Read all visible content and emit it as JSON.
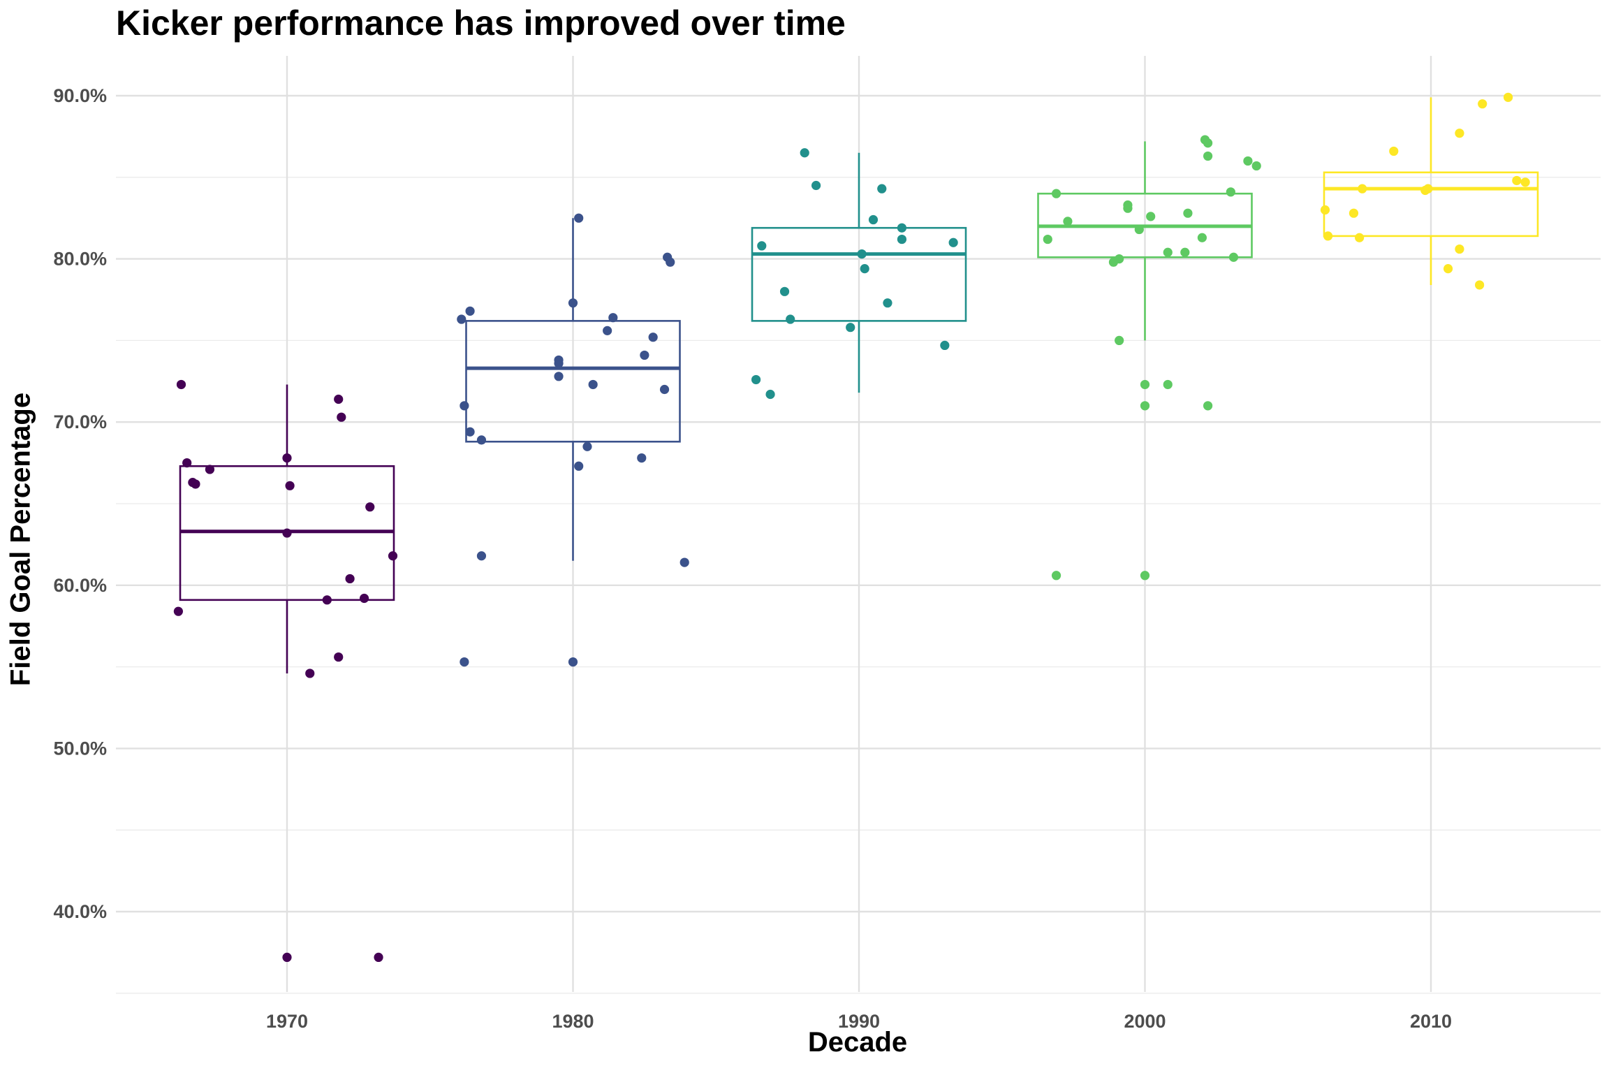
{
  "chart_data": {
    "type": "box",
    "title": "Kicker performance has improved over time",
    "xlabel": "Decade",
    "ylabel": "Field Goal Percentage",
    "categories": [
      "1970",
      "1980",
      "1990",
      "2000",
      "2010"
    ],
    "ylim": [
      0.35,
      0.92
    ],
    "y_ticks": [
      0.4,
      0.5,
      0.6,
      0.7,
      0.8,
      0.9
    ],
    "y_tick_labels": [
      "40.0%",
      "50.0%",
      "60.0%",
      "70.0%",
      "80.0%",
      "90.0%"
    ],
    "grid": true,
    "legend": "none",
    "colors": [
      "#440154",
      "#3b528b",
      "#21908c",
      "#5ec962",
      "#fde725"
    ],
    "boxes": [
      {
        "category": "1970",
        "q1": 0.591,
        "median": 0.633,
        "q3": 0.673,
        "whisker_low": 0.546,
        "whisker_high": 0.723
      },
      {
        "category": "1980",
        "q1": 0.688,
        "median": 0.733,
        "q3": 0.762,
        "whisker_low": 0.615,
        "whisker_high": 0.825
      },
      {
        "category": "1990",
        "q1": 0.762,
        "median": 0.803,
        "q3": 0.819,
        "whisker_low": 0.718,
        "whisker_high": 0.865
      },
      {
        "category": "2000",
        "q1": 0.801,
        "median": 0.82,
        "q3": 0.84,
        "whisker_low": 0.75,
        "whisker_high": 0.872
      },
      {
        "category": "2010",
        "q1": 0.814,
        "median": 0.843,
        "q3": 0.853,
        "whisker_low": 0.784,
        "whisker_high": 0.899
      }
    ],
    "points": [
      [
        [
          1966.3,
          0.723
        ],
        [
          1966.5,
          0.675
        ],
        [
          1966.7,
          0.663
        ],
        [
          1966.8,
          0.662
        ],
        [
          1967.3,
          0.671
        ],
        [
          1966.2,
          0.584
        ],
        [
          1970.0,
          0.678
        ],
        [
          1970.1,
          0.661
        ],
        [
          1970.0,
          0.632
        ],
        [
          1970.0,
          0.372
        ],
        [
          1971.8,
          0.714
        ],
        [
          1971.9,
          0.703
        ],
        [
          1972.9,
          0.648
        ],
        [
          1972.2,
          0.604
        ],
        [
          1971.4,
          0.591
        ],
        [
          1972.7,
          0.592
        ],
        [
          1971.8,
          0.556
        ],
        [
          1970.8,
          0.546
        ],
        [
          1973.2,
          0.372
        ],
        [
          1973.7,
          0.618
        ]
      ],
      [
        [
          1976.1,
          0.763
        ],
        [
          1976.4,
          0.768
        ],
        [
          1976.2,
          0.71
        ],
        [
          1976.4,
          0.694
        ],
        [
          1976.8,
          0.689
        ],
        [
          1976.8,
          0.618
        ],
        [
          1976.2,
          0.553
        ],
        [
          1979.5,
          0.738
        ],
        [
          1979.5,
          0.736
        ],
        [
          1979.5,
          0.728
        ],
        [
          1980.0,
          0.773
        ],
        [
          1980.2,
          0.825
        ],
        [
          1980.2,
          0.673
        ],
        [
          1980.5,
          0.685
        ],
        [
          1980.7,
          0.723
        ],
        [
          1981.2,
          0.756
        ],
        [
          1981.4,
          0.764
        ],
        [
          1982.4,
          0.678
        ],
        [
          1982.5,
          0.741
        ],
        [
          1982.8,
          0.752
        ],
        [
          1983.2,
          0.72
        ],
        [
          1983.3,
          0.801
        ],
        [
          1983.4,
          0.798
        ],
        [
          1983.9,
          0.614
        ],
        [
          1980.0,
          0.553
        ]
      ],
      [
        [
          1986.4,
          0.726
        ],
        [
          1986.9,
          0.717
        ],
        [
          1986.6,
          0.808
        ],
        [
          1987.4,
          0.78
        ],
        [
          1987.6,
          0.763
        ],
        [
          1988.1,
          0.865
        ],
        [
          1988.5,
          0.845
        ],
        [
          1989.7,
          0.758
        ],
        [
          1990.1,
          0.803
        ],
        [
          1990.2,
          0.794
        ],
        [
          1990.5,
          0.824
        ],
        [
          1990.8,
          0.843
        ],
        [
          1991.0,
          0.773
        ],
        [
          1991.5,
          0.812
        ],
        [
          1991.5,
          0.819
        ],
        [
          1993.0,
          0.747
        ],
        [
          1993.3,
          0.81
        ]
      ],
      [
        [
          1996.6,
          0.812
        ],
        [
          1996.9,
          0.84
        ],
        [
          1997.3,
          0.823
        ],
        [
          1996.9,
          0.606
        ],
        [
          1998.9,
          0.798
        ],
        [
          1999.1,
          0.8
        ],
        [
          1999.1,
          0.75
        ],
        [
          1999.4,
          0.833
        ],
        [
          1999.4,
          0.831
        ],
        [
          1999.8,
          0.818
        ],
        [
          2000.0,
          0.723
        ],
        [
          2000.0,
          0.71
        ],
        [
          2000.0,
          0.606
        ],
        [
          2000.2,
          0.826
        ],
        [
          2000.8,
          0.804
        ],
        [
          2000.8,
          0.723
        ],
        [
          2001.4,
          0.804
        ],
        [
          2001.5,
          0.828
        ],
        [
          2002.0,
          0.813
        ],
        [
          2002.1,
          0.873
        ],
        [
          2002.2,
          0.871
        ],
        [
          2002.2,
          0.863
        ],
        [
          2002.2,
          0.71
        ],
        [
          2003.1,
          0.801
        ],
        [
          2003.0,
          0.841
        ],
        [
          2003.6,
          0.86
        ],
        [
          2003.9,
          0.857
        ]
      ],
      [
        [
          2006.3,
          0.83
        ],
        [
          2006.4,
          0.814
        ],
        [
          2007.3,
          0.828
        ],
        [
          2007.5,
          0.813
        ],
        [
          2007.6,
          0.843
        ],
        [
          2008.7,
          0.866
        ],
        [
          2009.8,
          0.842
        ],
        [
          2009.9,
          0.843
        ],
        [
          2010.6,
          0.794
        ],
        [
          2011.0,
          0.877
        ],
        [
          2011.0,
          0.806
        ],
        [
          2011.7,
          0.784
        ],
        [
          2011.8,
          0.895
        ],
        [
          2012.7,
          0.899
        ],
        [
          2013.0,
          0.848
        ],
        [
          2013.3,
          0.847
        ]
      ]
    ]
  }
}
